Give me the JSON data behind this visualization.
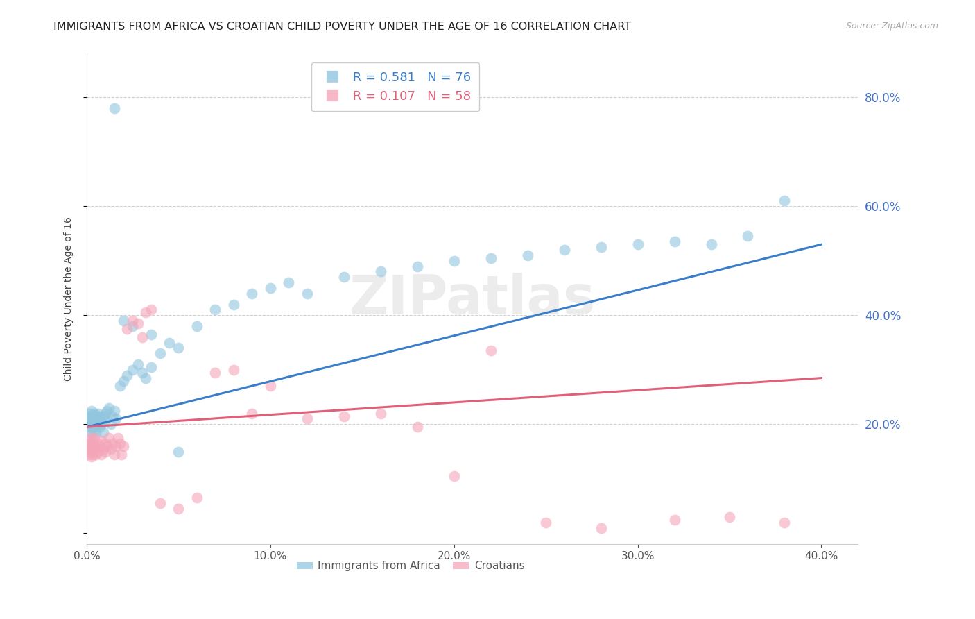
{
  "title": "IMMIGRANTS FROM AFRICA VS CROATIAN CHILD POVERTY UNDER THE AGE OF 16 CORRELATION CHART",
  "source": "Source: ZipAtlas.com",
  "ylabel": "Child Poverty Under the Age of 16",
  "xlim": [
    0.0,
    0.42
  ],
  "ylim": [
    -0.02,
    0.88
  ],
  "legend1_R": "0.581",
  "legend1_N": "76",
  "legend2_R": "0.107",
  "legend2_N": "58",
  "blue_color": "#92c5de",
  "pink_color": "#f4a6b8",
  "line_blue": "#3a7dc9",
  "line_pink": "#e0607a",
  "watermark": "ZIPatlas",
  "africa_scatter_x": [
    0.0005,
    0.001,
    0.001,
    0.0015,
    0.0015,
    0.002,
    0.002,
    0.002,
    0.0025,
    0.0025,
    0.003,
    0.003,
    0.003,
    0.0035,
    0.0035,
    0.004,
    0.004,
    0.004,
    0.0045,
    0.0045,
    0.005,
    0.005,
    0.005,
    0.006,
    0.006,
    0.006,
    0.007,
    0.007,
    0.008,
    0.008,
    0.009,
    0.009,
    0.01,
    0.01,
    0.011,
    0.012,
    0.013,
    0.014,
    0.015,
    0.016,
    0.018,
    0.02,
    0.022,
    0.025,
    0.028,
    0.03,
    0.032,
    0.035,
    0.04,
    0.045,
    0.05,
    0.06,
    0.07,
    0.08,
    0.09,
    0.1,
    0.11,
    0.12,
    0.14,
    0.16,
    0.18,
    0.2,
    0.22,
    0.24,
    0.26,
    0.28,
    0.3,
    0.32,
    0.34,
    0.36,
    0.015,
    0.02,
    0.025,
    0.035,
    0.05,
    0.38
  ],
  "africa_scatter_y": [
    0.21,
    0.195,
    0.215,
    0.205,
    0.22,
    0.2,
    0.215,
    0.185,
    0.21,
    0.225,
    0.195,
    0.215,
    0.205,
    0.2,
    0.185,
    0.21,
    0.22,
    0.195,
    0.215,
    0.2,
    0.205,
    0.185,
    0.215,
    0.2,
    0.21,
    0.22,
    0.195,
    0.215,
    0.205,
    0.2,
    0.215,
    0.185,
    0.21,
    0.22,
    0.225,
    0.23,
    0.2,
    0.215,
    0.225,
    0.21,
    0.27,
    0.28,
    0.29,
    0.3,
    0.31,
    0.295,
    0.285,
    0.305,
    0.33,
    0.35,
    0.34,
    0.38,
    0.41,
    0.42,
    0.44,
    0.45,
    0.46,
    0.44,
    0.47,
    0.48,
    0.49,
    0.5,
    0.505,
    0.51,
    0.52,
    0.525,
    0.53,
    0.535,
    0.53,
    0.545,
    0.78,
    0.39,
    0.38,
    0.365,
    0.15,
    0.61
  ],
  "croatian_scatter_x": [
    0.0005,
    0.001,
    0.001,
    0.0015,
    0.0015,
    0.002,
    0.002,
    0.0025,
    0.003,
    0.003,
    0.003,
    0.0035,
    0.004,
    0.004,
    0.005,
    0.005,
    0.006,
    0.006,
    0.007,
    0.008,
    0.008,
    0.009,
    0.01,
    0.01,
    0.011,
    0.012,
    0.013,
    0.014,
    0.015,
    0.016,
    0.017,
    0.018,
    0.019,
    0.02,
    0.022,
    0.025,
    0.028,
    0.03,
    0.032,
    0.035,
    0.04,
    0.05,
    0.06,
    0.07,
    0.08,
    0.09,
    0.1,
    0.12,
    0.14,
    0.16,
    0.18,
    0.2,
    0.22,
    0.25,
    0.28,
    0.32,
    0.35,
    0.38
  ],
  "croatian_scatter_y": [
    0.17,
    0.16,
    0.145,
    0.155,
    0.165,
    0.15,
    0.175,
    0.14,
    0.155,
    0.165,
    0.145,
    0.17,
    0.16,
    0.175,
    0.155,
    0.145,
    0.165,
    0.15,
    0.16,
    0.145,
    0.17,
    0.155,
    0.165,
    0.15,
    0.16,
    0.175,
    0.155,
    0.165,
    0.145,
    0.16,
    0.175,
    0.165,
    0.145,
    0.16,
    0.375,
    0.39,
    0.385,
    0.36,
    0.405,
    0.41,
    0.055,
    0.045,
    0.065,
    0.295,
    0.3,
    0.22,
    0.27,
    0.21,
    0.215,
    0.22,
    0.195,
    0.105,
    0.335,
    0.02,
    0.01,
    0.025,
    0.03,
    0.02
  ],
  "africa_line_x": [
    0.0,
    0.4
  ],
  "africa_line_y": [
    0.195,
    0.53
  ],
  "croatian_line_x": [
    0.0,
    0.4
  ],
  "croatian_line_y": [
    0.195,
    0.285
  ],
  "xticks": [
    0.0,
    0.1,
    0.2,
    0.3,
    0.4
  ],
  "yticks_right": [
    0.2,
    0.4,
    0.6,
    0.8
  ],
  "title_fontsize": 11.5,
  "axis_label_fontsize": 10,
  "tick_fontsize": 11,
  "legend_fontsize": 13,
  "background_color": "#ffffff",
  "grid_color": "#cccccc",
  "right_axis_color": "#4472c4",
  "scatter_size": 130
}
